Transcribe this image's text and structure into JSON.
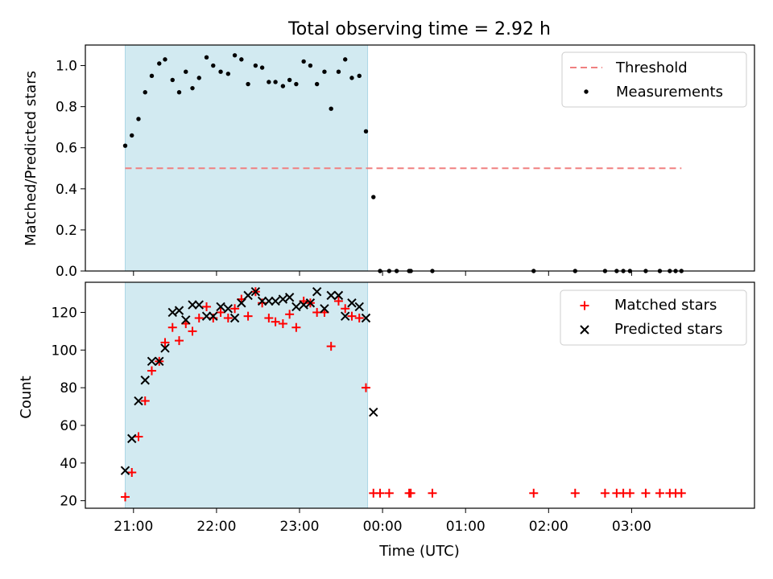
{
  "title": "Total observing time = 2.92 h",
  "x_axis": {
    "label": "Time (UTC)",
    "ticks": [
      {
        "h": 21,
        "label": "21:00"
      },
      {
        "h": 22,
        "label": "22:00"
      },
      {
        "h": 23,
        "label": "23:00"
      },
      {
        "h": 24,
        "label": "00:00"
      },
      {
        "h": 25,
        "label": "01:00"
      },
      {
        "h": 26,
        "label": "02:00"
      },
      {
        "h": 27,
        "label": "03:00"
      }
    ]
  },
  "shaded_interval": [
    20.9,
    23.82
  ],
  "shade_color": "#add8e6",
  "chart_data": [
    {
      "type": "scatter",
      "ylabel": "Matched/Predicted stars",
      "xlim": [
        20.42,
        28.48
      ],
      "ylim": [
        0,
        1.1
      ],
      "yticks": [
        {
          "v": 0.0,
          "label": "0.0"
        },
        {
          "v": 0.2,
          "label": "0.2"
        },
        {
          "v": 0.4,
          "label": "0.4"
        },
        {
          "v": 0.6,
          "label": "0.6"
        },
        {
          "v": 0.8,
          "label": "0.8"
        },
        {
          "v": 1.0,
          "label": "1.0"
        }
      ],
      "legend_position": "top-right",
      "threshold": {
        "name": "Threshold",
        "value": 0.5,
        "x_range": [
          20.9,
          27.6
        ],
        "color": "#f08080"
      },
      "series": [
        {
          "name": "Measurements",
          "color": "#000000",
          "x": [
            20.9,
            20.98,
            21.06,
            21.14,
            21.22,
            21.31,
            21.38,
            21.47,
            21.55,
            21.63,
            21.71,
            21.79,
            21.88,
            21.96,
            22.05,
            22.14,
            22.22,
            22.3,
            22.38,
            22.47,
            22.55,
            22.63,
            22.71,
            22.8,
            22.88,
            22.96,
            23.05,
            23.13,
            23.21,
            23.3,
            23.38,
            23.47,
            23.55,
            23.63,
            23.72,
            23.8,
            23.89,
            23.97,
            24.08,
            24.17,
            24.32,
            24.34,
            24.6,
            25.82,
            26.32,
            26.68,
            26.82,
            26.9,
            26.98,
            27.17,
            27.34,
            27.46,
            27.53,
            27.6
          ],
          "y": [
            0.61,
            0.66,
            0.74,
            0.87,
            0.95,
            1.01,
            1.03,
            0.93,
            0.87,
            0.97,
            0.89,
            0.94,
            1.04,
            1.0,
            0.97,
            0.96,
            1.05,
            1.03,
            0.91,
            1.0,
            0.99,
            0.92,
            0.92,
            0.9,
            0.93,
            0.91,
            1.02,
            1.0,
            0.91,
            0.97,
            0.79,
            0.97,
            1.03,
            0.94,
            0.95,
            0.68,
            0.36,
            0.0,
            0.0,
            0.0,
            0.0,
            0.0,
            0.0,
            0.0,
            0.0,
            0.0,
            0.0,
            0.0,
            0.0,
            0.0,
            0.0,
            0.0,
            0.0,
            0.0
          ]
        }
      ]
    },
    {
      "type": "scatter",
      "ylabel": "Count",
      "xlim": [
        20.42,
        28.48
      ],
      "ylim": [
        16,
        136
      ],
      "yticks": [
        {
          "v": 20,
          "label": "20"
        },
        {
          "v": 40,
          "label": "40"
        },
        {
          "v": 60,
          "label": "60"
        },
        {
          "v": 80,
          "label": "80"
        },
        {
          "v": 100,
          "label": "100"
        },
        {
          "v": 120,
          "label": "120"
        }
      ],
      "legend_position": "top-right",
      "series": [
        {
          "name": "Matched stars",
          "marker": "plus",
          "color": "#ff0000",
          "x": [
            20.9,
            20.98,
            21.06,
            21.14,
            21.22,
            21.31,
            21.38,
            21.47,
            21.55,
            21.63,
            21.71,
            21.79,
            21.88,
            21.96,
            22.05,
            22.14,
            22.22,
            22.3,
            22.38,
            22.47,
            22.55,
            22.63,
            22.71,
            22.8,
            22.88,
            22.96,
            23.05,
            23.13,
            23.21,
            23.3,
            23.38,
            23.47,
            23.55,
            23.63,
            23.72,
            23.8,
            23.89,
            23.97,
            24.08,
            24.32,
            24.34,
            24.6,
            25.82,
            26.32,
            26.68,
            26.82,
            26.9,
            26.98,
            27.17,
            27.34,
            27.46,
            27.53,
            27.6
          ],
          "y": [
            22,
            35,
            54,
            73,
            89,
            94,
            104,
            112,
            105,
            114,
            110,
            117,
            123,
            117,
            120,
            117,
            122,
            127,
            118,
            131,
            125,
            117,
            115,
            114,
            119,
            112,
            126,
            125,
            120,
            120,
            102,
            126,
            122,
            118,
            117,
            80,
            24,
            24,
            24,
            24,
            24,
            24,
            24,
            24,
            24,
            24,
            24,
            24,
            24,
            24,
            24,
            24,
            24
          ]
        },
        {
          "name": "Predicted stars",
          "marker": "x",
          "color": "#000000",
          "x": [
            20.9,
            20.98,
            21.06,
            21.14,
            21.22,
            21.31,
            21.38,
            21.47,
            21.55,
            21.63,
            21.71,
            21.79,
            21.88,
            21.96,
            22.05,
            22.14,
            22.22,
            22.3,
            22.38,
            22.47,
            22.55,
            22.63,
            22.71,
            22.8,
            22.88,
            22.96,
            23.05,
            23.13,
            23.21,
            23.3,
            23.38,
            23.47,
            23.55,
            23.63,
            23.72,
            23.8,
            23.89
          ],
          "y": [
            36,
            53,
            73,
            84,
            94,
            94,
            101,
            120,
            121,
            116,
            124,
            124,
            118,
            118,
            123,
            122,
            117,
            125,
            129,
            131,
            126,
            126,
            126,
            127,
            128,
            123,
            124,
            125,
            131,
            122,
            129,
            129,
            118,
            125,
            123,
            117,
            67
          ]
        }
      ]
    }
  ]
}
